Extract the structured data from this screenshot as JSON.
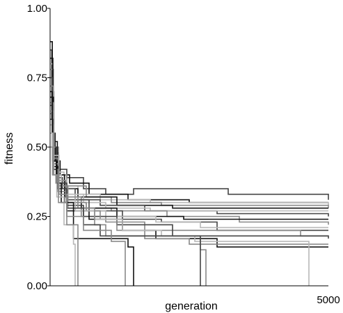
{
  "chart_data": {
    "type": "line",
    "title": "",
    "xlabel": "generation",
    "ylabel": "fitness",
    "xlim": [
      0,
      5000
    ],
    "ylim": [
      0,
      1
    ],
    "x_tick_labels": [
      "5000"
    ],
    "y_tick_labels": [
      "0.00",
      "0.25",
      "0.50",
      "0.75",
      "1.00"
    ],
    "y_ticks": [
      0,
      0.25,
      0.5,
      0.75,
      1.0
    ],
    "grid": false,
    "legend": "none",
    "step": true,
    "colors": {
      "black": "#111111",
      "dark_gray": "#444444",
      "mid_gray": "#888888",
      "light_gray": "#b8b8b8",
      "axis": "#000000"
    },
    "series": [
      {
        "color": "#444444",
        "points": [
          [
            0,
            0.85
          ],
          [
            30,
            0.6
          ],
          [
            70,
            0.48
          ],
          [
            150,
            0.42
          ],
          [
            300,
            0.39
          ],
          [
            600,
            0.35
          ],
          [
            1000,
            0.33
          ],
          [
            1500,
            0.35
          ],
          [
            3200,
            0.33
          ],
          [
            5000,
            0.31
          ]
        ]
      },
      {
        "color": "#111111",
        "points": [
          [
            0,
            0.88
          ],
          [
            40,
            0.55
          ],
          [
            90,
            0.45
          ],
          [
            180,
            0.4
          ],
          [
            350,
            0.37
          ],
          [
            700,
            0.33
          ],
          [
            1400,
            0.31
          ],
          [
            2500,
            0.3
          ],
          [
            5000,
            0.3
          ]
        ]
      },
      {
        "color": "#b8b8b8",
        "points": [
          [
            0,
            0.8
          ],
          [
            50,
            0.5
          ],
          [
            120,
            0.41
          ],
          [
            250,
            0.36
          ],
          [
            500,
            0.33
          ],
          [
            900,
            0.31
          ],
          [
            1800,
            0.3
          ],
          [
            3800,
            0.3
          ],
          [
            5000,
            0.29
          ]
        ]
      },
      {
        "color": "#888888",
        "points": [
          [
            0,
            0.78
          ],
          [
            60,
            0.5
          ],
          [
            150,
            0.4
          ],
          [
            300,
            0.36
          ],
          [
            650,
            0.32
          ],
          [
            1100,
            0.3
          ],
          [
            2000,
            0.29
          ],
          [
            5000,
            0.28
          ]
        ]
      },
      {
        "color": "#111111",
        "points": [
          [
            0,
            0.82
          ],
          [
            50,
            0.52
          ],
          [
            130,
            0.4
          ],
          [
            260,
            0.35
          ],
          [
            500,
            0.32
          ],
          [
            1200,
            0.29
          ],
          [
            2200,
            0.28
          ],
          [
            5000,
            0.28
          ]
        ]
      },
      {
        "color": "#444444",
        "points": [
          [
            0,
            0.75
          ],
          [
            40,
            0.5
          ],
          [
            110,
            0.39
          ],
          [
            220,
            0.35
          ],
          [
            450,
            0.31
          ],
          [
            900,
            0.29
          ],
          [
            1700,
            0.27
          ],
          [
            3000,
            0.26
          ],
          [
            5000,
            0.25
          ]
        ]
      },
      {
        "color": "#b8b8b8",
        "points": [
          [
            0,
            0.7
          ],
          [
            70,
            0.47
          ],
          [
            160,
            0.38
          ],
          [
            300,
            0.33
          ],
          [
            600,
            0.3
          ],
          [
            1000,
            0.28
          ],
          [
            1800,
            0.27
          ],
          [
            3500,
            0.27
          ],
          [
            5000,
            0.27
          ]
        ]
      },
      {
        "color": "#888888",
        "points": [
          [
            0,
            0.72
          ],
          [
            60,
            0.46
          ],
          [
            140,
            0.38
          ],
          [
            280,
            0.32
          ],
          [
            560,
            0.28
          ],
          [
            1100,
            0.27
          ],
          [
            2100,
            0.25
          ],
          [
            3400,
            0.23
          ],
          [
            5000,
            0.22
          ]
        ]
      },
      {
        "color": "#111111",
        "points": [
          [
            0,
            0.68
          ],
          [
            60,
            0.45
          ],
          [
            130,
            0.37
          ],
          [
            260,
            0.3
          ],
          [
            560,
            0.28
          ],
          [
            1200,
            0.25
          ],
          [
            2400,
            0.24
          ],
          [
            5000,
            0.24
          ]
        ]
      },
      {
        "color": "#444444",
        "points": [
          [
            0,
            0.65
          ],
          [
            60,
            0.44
          ],
          [
            140,
            0.37
          ],
          [
            300,
            0.31
          ],
          [
            700,
            0.27
          ],
          [
            1300,
            0.24
          ],
          [
            2000,
            0.23
          ],
          [
            3000,
            0.2
          ],
          [
            5000,
            0.2
          ]
        ]
      },
      {
        "color": "#b8b8b8",
        "points": [
          [
            0,
            0.63
          ],
          [
            70,
            0.43
          ],
          [
            160,
            0.36
          ],
          [
            320,
            0.3
          ],
          [
            650,
            0.27
          ],
          [
            1000,
            0.25
          ],
          [
            1900,
            0.23
          ],
          [
            2700,
            0.21
          ],
          [
            5000,
            0.21
          ]
        ]
      },
      {
        "color": "#888888",
        "points": [
          [
            0,
            0.66
          ],
          [
            60,
            0.44
          ],
          [
            150,
            0.36
          ],
          [
            320,
            0.28
          ],
          [
            560,
            0.25
          ],
          [
            1000,
            0.23
          ],
          [
            1700,
            0.2
          ],
          [
            4500,
            0.18
          ],
          [
            5000,
            0.18
          ]
        ]
      },
      {
        "color": "#444444",
        "points": [
          [
            0,
            0.6
          ],
          [
            60,
            0.42
          ],
          [
            150,
            0.36
          ],
          [
            300,
            0.29
          ],
          [
            600,
            0.25
          ],
          [
            1200,
            0.22
          ],
          [
            2200,
            0.18
          ],
          [
            5000,
            0.17
          ]
        ]
      },
      {
        "color": "#111111",
        "points": [
          [
            0,
            0.62
          ],
          [
            50,
            0.43
          ],
          [
            140,
            0.35
          ],
          [
            300,
            0.27
          ],
          [
            700,
            0.24
          ],
          [
            1300,
            0.2
          ],
          [
            1900,
            0.17
          ],
          [
            3000,
            0.14
          ],
          [
            5000,
            0.14
          ]
        ]
      },
      {
        "color": "#888888",
        "points": [
          [
            0,
            0.6
          ],
          [
            60,
            0.42
          ],
          [
            140,
            0.34
          ],
          [
            300,
            0.3
          ],
          [
            650,
            0.27
          ],
          [
            900,
            0.24
          ],
          [
            1200,
            0.2
          ],
          [
            1700,
            0.17
          ],
          [
            2500,
            0.15
          ],
          [
            5000,
            0.15
          ]
        ]
      },
      {
        "color": "#b8b8b8",
        "points": [
          [
            0,
            0.58
          ],
          [
            70,
            0.4
          ],
          [
            200,
            0.33
          ],
          [
            450,
            0.27
          ],
          [
            800,
            0.24
          ],
          [
            1300,
            0.2
          ],
          [
            2000,
            0.18
          ],
          [
            2600,
            0.16
          ],
          [
            4650,
            0.16
          ],
          [
            4650,
            0.0
          ]
        ]
      },
      {
        "color": "#888888",
        "points": [
          [
            0,
            0.62
          ],
          [
            60,
            0.42
          ],
          [
            150,
            0.36
          ],
          [
            300,
            0.32
          ],
          [
            500,
            0.28
          ],
          [
            800,
            0.22
          ],
          [
            1000,
            0.18
          ],
          [
            1800,
            0.18
          ],
          [
            2700,
            0.13
          ],
          [
            2800,
            0.13
          ],
          [
            2800,
            0.0
          ]
        ]
      },
      {
        "color": "#444444",
        "points": [
          [
            0,
            0.6
          ],
          [
            50,
            0.42
          ],
          [
            130,
            0.35
          ],
          [
            300,
            0.28
          ],
          [
            600,
            0.22
          ],
          [
            900,
            0.18
          ],
          [
            1500,
            0.18
          ],
          [
            2700,
            0.14
          ],
          [
            2700,
            0.0
          ]
        ]
      },
      {
        "color": "#111111",
        "points": [
          [
            0,
            0.7
          ],
          [
            40,
            0.45
          ],
          [
            110,
            0.37
          ],
          [
            200,
            0.3
          ],
          [
            420,
            0.17
          ],
          [
            1400,
            0.17
          ],
          [
            1400,
            0.14
          ],
          [
            1500,
            0.14
          ],
          [
            1500,
            0.0
          ]
        ]
      },
      {
        "color": "#888888",
        "points": [
          [
            0,
            0.55
          ],
          [
            60,
            0.4
          ],
          [
            160,
            0.33
          ],
          [
            300,
            0.25
          ],
          [
            600,
            0.2
          ],
          [
            1100,
            0.16
          ],
          [
            1350,
            0.16
          ],
          [
            1350,
            0.0
          ]
        ]
      },
      {
        "color": "#b8b8b8",
        "points": [
          [
            0,
            0.55
          ],
          [
            40,
            0.4
          ],
          [
            120,
            0.32
          ],
          [
            250,
            0.22
          ],
          [
            420,
            0.15
          ],
          [
            450,
            0.12
          ],
          [
            450,
            0.0
          ]
        ]
      },
      {
        "color": "#888888",
        "points": [
          [
            0,
            0.5
          ],
          [
            50,
            0.4
          ],
          [
            150,
            0.3
          ],
          [
            300,
            0.22
          ],
          [
            500,
            0.1
          ],
          [
            500,
            0.0
          ]
        ]
      }
    ]
  }
}
